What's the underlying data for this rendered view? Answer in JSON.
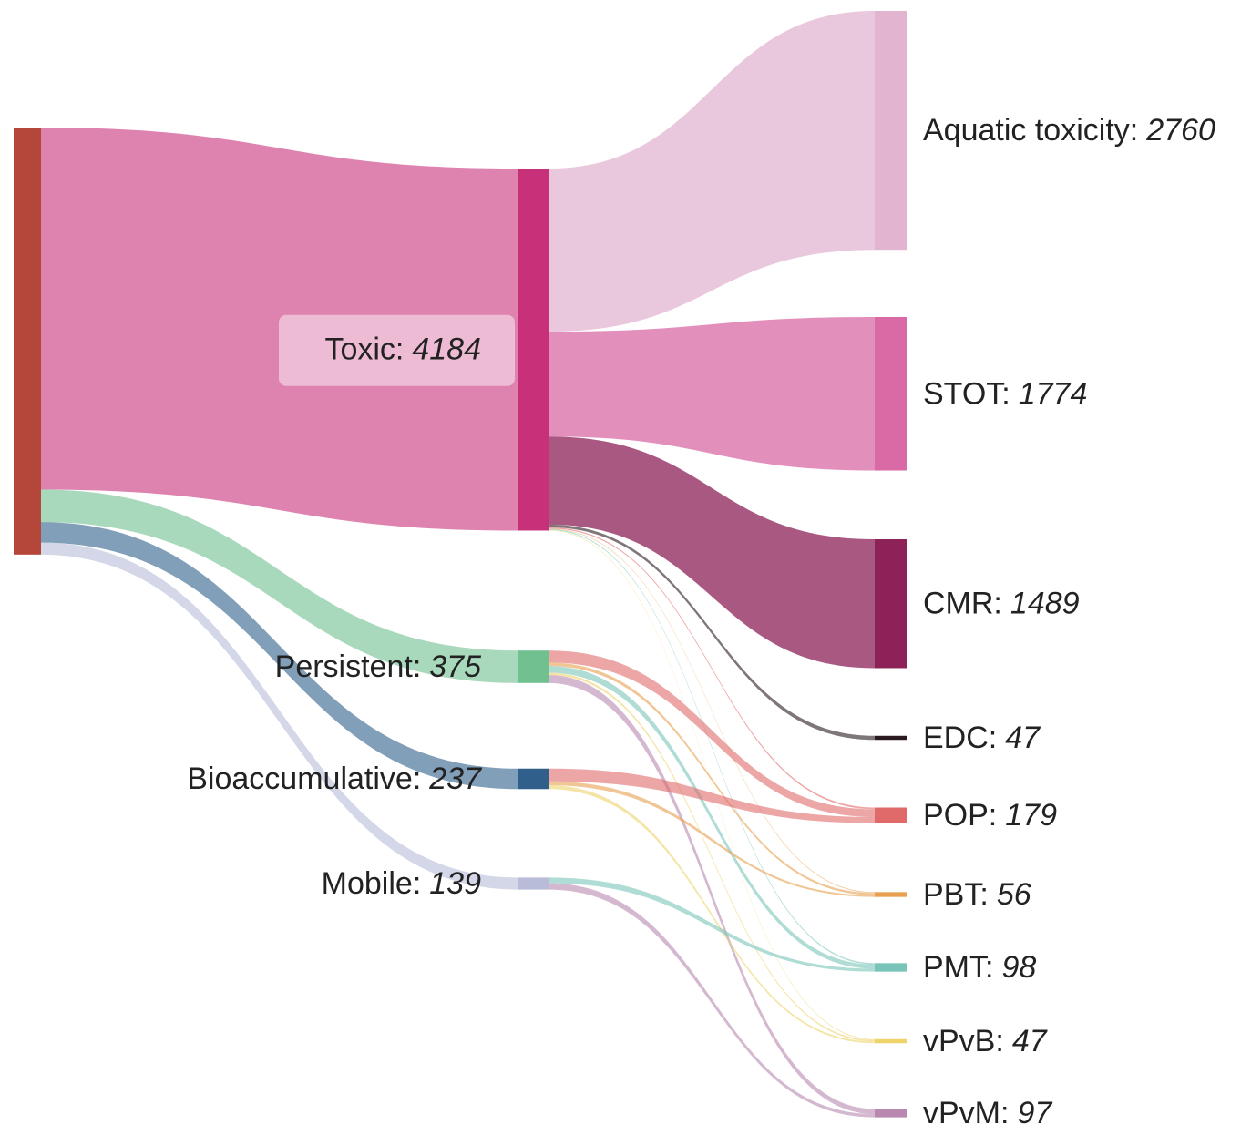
{
  "chart_data": {
    "type": "sankey",
    "nodes": [
      {
        "color": "#b5473a"
      },
      {
        "label": "Toxic:",
        "value": 4184,
        "color": "#c8307a"
      },
      {
        "label": "Persistent:",
        "value": 375,
        "color": "#70c090"
      },
      {
        "label": "Bioaccumulative:",
        "value": 237,
        "color": "#2f5f8a"
      },
      {
        "label": "Mobile:",
        "value": 139,
        "color": "#b8bcd8"
      },
      {
        "label": "Aquatic toxicity:",
        "value": 2760,
        "color": "#e2b4d0"
      },
      {
        "label": "STOT:",
        "value": 1774,
        "color": "#d96aa6"
      },
      {
        "label": "CMR:",
        "value": 1489,
        "color": "#8c2257"
      },
      {
        "label": "EDC:",
        "value": 47,
        "color": "#2a1a20"
      },
      {
        "label": "POP:",
        "value": 179,
        "color": "#e06a6a"
      },
      {
        "label": "PBT:",
        "value": 56,
        "color": "#e8a050"
      },
      {
        "label": "PMT:",
        "value": 98,
        "color": "#79c4b8"
      },
      {
        "label": "vPvB:",
        "value": 47,
        "color": "#edd36a"
      },
      {
        "label": "vPvM:",
        "value": 97,
        "color": "#b888b0"
      }
    ],
    "links": [
      {
        "source": 0,
        "target": 1,
        "value": 4184
      },
      {
        "source": 0,
        "target": 2,
        "value": 375
      },
      {
        "source": 0,
        "target": 3,
        "value": 237
      },
      {
        "source": 0,
        "target": 4,
        "value": 139
      },
      {
        "source": 1,
        "target": 5,
        "value": 2760
      },
      {
        "source": 1,
        "target": 6,
        "value": 1774
      },
      {
        "source": 1,
        "target": 7,
        "value": 1489
      },
      {
        "source": 1,
        "target": 8,
        "value": 47
      },
      {
        "source": 1,
        "target": 9,
        "value": 20
      },
      {
        "source": 1,
        "target": 10,
        "value": 10
      },
      {
        "source": 1,
        "target": 11,
        "value": 15
      },
      {
        "source": 1,
        "target": 12,
        "value": 10
      },
      {
        "source": 2,
        "target": 9,
        "value": 90
      },
      {
        "source": 2,
        "target": 10,
        "value": 25
      },
      {
        "source": 2,
        "target": 11,
        "value": 50
      },
      {
        "source": 2,
        "target": 12,
        "value": 17
      },
      {
        "source": 2,
        "target": 13,
        "value": 60
      },
      {
        "source": 3,
        "target": 9,
        "value": 69
      },
      {
        "source": 3,
        "target": 10,
        "value": 21
      },
      {
        "source": 3,
        "target": 12,
        "value": 20
      },
      {
        "source": 4,
        "target": 11,
        "value": 33
      },
      {
        "source": 4,
        "target": 13,
        "value": 37
      }
    ]
  }
}
